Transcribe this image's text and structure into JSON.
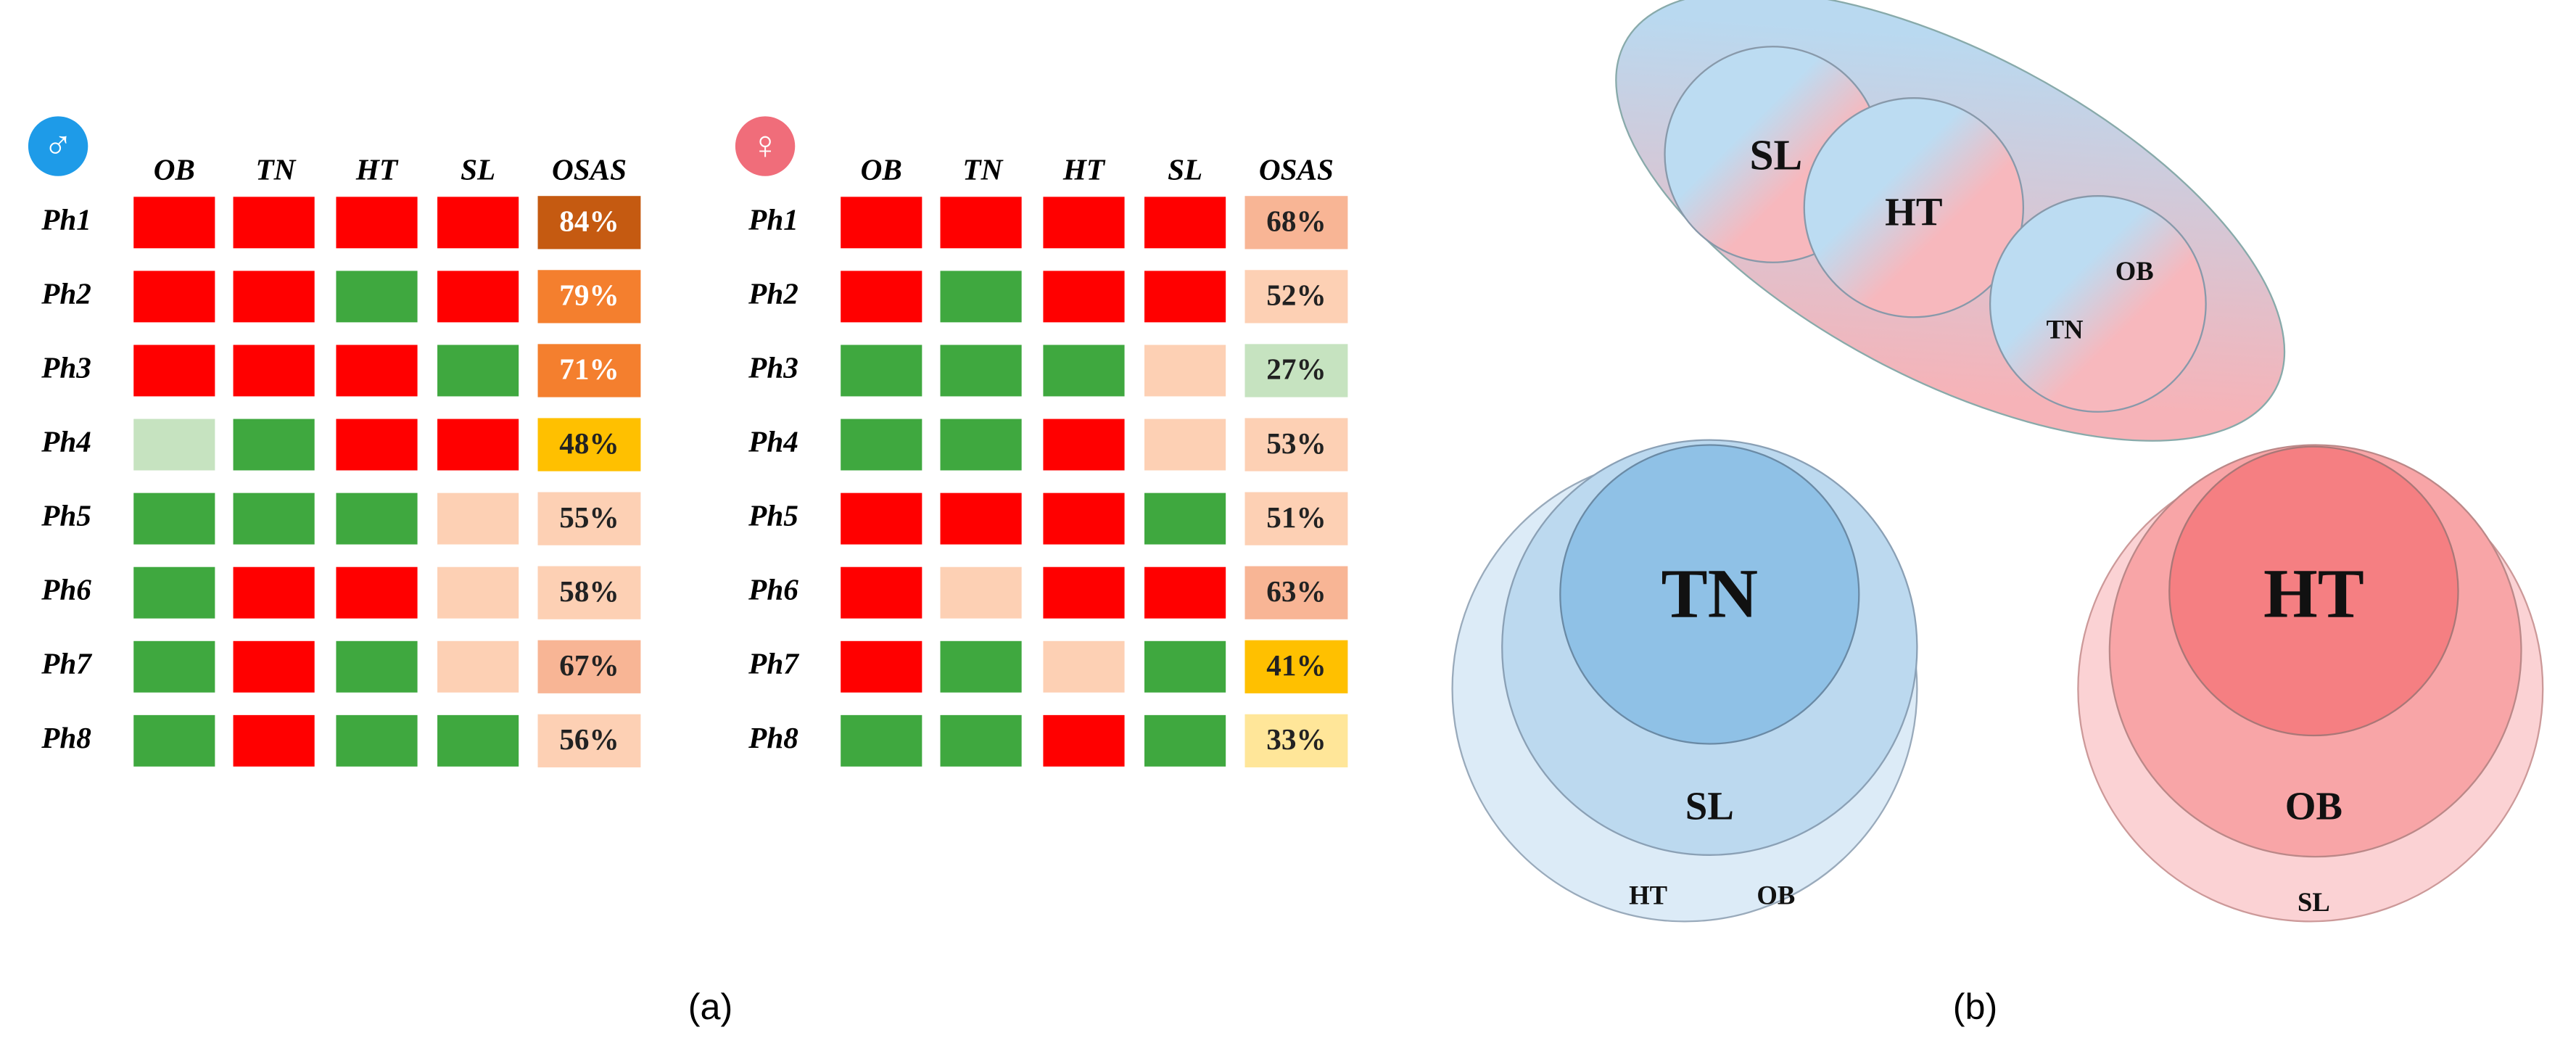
{
  "tables": [
    {
      "symbol": "♂",
      "symbol_color": "#1e9be8",
      "columns": [
        "OB",
        "TN",
        "HT",
        "SL",
        "OSAS"
      ],
      "rows": [
        {
          "label": "Ph1",
          "cells": [
            "#ff0000",
            "#ff0000",
            "#ff0000",
            "#ff0000"
          ],
          "osas": "84%",
          "osas_color": "#c55a11",
          "text_color": "#ffffff"
        },
        {
          "label": "Ph2",
          "cells": [
            "#ff0000",
            "#ff0000",
            "#3fa83f",
            "#ff0000"
          ],
          "osas": "79%",
          "osas_color": "#f47f2e",
          "text_color": "#ffffff"
        },
        {
          "label": "Ph3",
          "cells": [
            "#ff0000",
            "#ff0000",
            "#ff0000",
            "#3fa83f"
          ],
          "osas": "71%",
          "osas_color": "#f47f2e",
          "text_color": "#ffffff"
        },
        {
          "label": "Ph4",
          "cells": [
            "#c6e3c0",
            "#3fa83f",
            "#ff0000",
            "#ff0000"
          ],
          "osas": "48%",
          "osas_color": "#ffc000",
          "text_color": "#222222"
        },
        {
          "label": "Ph5",
          "cells": [
            "#3fa83f",
            "#3fa83f",
            "#3fa83f",
            "#fdd0b4"
          ],
          "osas": "55%",
          "osas_color": "#fdd0b4",
          "text_color": "#222222"
        },
        {
          "label": "Ph6",
          "cells": [
            "#3fa83f",
            "#ff0000",
            "#ff0000",
            "#fdd0b4"
          ],
          "osas": "58%",
          "osas_color": "#fdd0b4",
          "text_color": "#222222"
        },
        {
          "label": "Ph7",
          "cells": [
            "#3fa83f",
            "#ff0000",
            "#3fa83f",
            "#fdd0b4"
          ],
          "osas": "67%",
          "osas_color": "#f8b595",
          "text_color": "#222222"
        },
        {
          "label": "Ph8",
          "cells": [
            "#3fa83f",
            "#ff0000",
            "#3fa83f",
            "#3fa83f"
          ],
          "osas": "56%",
          "osas_color": "#fdd0b4",
          "text_color": "#222222"
        }
      ]
    },
    {
      "symbol": "♀",
      "symbol_color": "#f06d7a",
      "columns": [
        "OB",
        "TN",
        "HT",
        "SL",
        "OSAS"
      ],
      "rows": [
        {
          "label": "Ph1",
          "cells": [
            "#ff0000",
            "#ff0000",
            "#ff0000",
            "#ff0000"
          ],
          "osas": "68%",
          "osas_color": "#f8b595",
          "text_color": "#222222"
        },
        {
          "label": "Ph2",
          "cells": [
            "#ff0000",
            "#3fa83f",
            "#ff0000",
            "#ff0000"
          ],
          "osas": "52%",
          "osas_color": "#fdd0b4",
          "text_color": "#222222"
        },
        {
          "label": "Ph3",
          "cells": [
            "#3fa83f",
            "#3fa83f",
            "#3fa83f",
            "#fdd0b4"
          ],
          "osas": "27%",
          "osas_color": "#c6e3c0",
          "text_color": "#222222"
        },
        {
          "label": "Ph4",
          "cells": [
            "#3fa83f",
            "#3fa83f",
            "#ff0000",
            "#fdd0b4"
          ],
          "osas": "53%",
          "osas_color": "#fdd0b4",
          "text_color": "#222222"
        },
        {
          "label": "Ph5",
          "cells": [
            "#ff0000",
            "#ff0000",
            "#ff0000",
            "#3fa83f"
          ],
          "osas": "51%",
          "osas_color": "#fdd0b4",
          "text_color": "#222222"
        },
        {
          "label": "Ph6",
          "cells": [
            "#ff0000",
            "#fdd0b4",
            "#ff0000",
            "#ff0000"
          ],
          "osas": "63%",
          "osas_color": "#f8b595",
          "text_color": "#222222"
        },
        {
          "label": "Ph7",
          "cells": [
            "#ff0000",
            "#3fa83f",
            "#fdd0b4",
            "#3fa83f"
          ],
          "osas": "41%",
          "osas_color": "#ffc000",
          "text_color": "#222222"
        },
        {
          "label": "Ph8",
          "cells": [
            "#3fa83f",
            "#3fa83f",
            "#ff0000",
            "#3fa83f"
          ],
          "osas": "33%",
          "osas_color": "#ffe699",
          "text_color": "#222222"
        }
      ]
    }
  ],
  "venn_top": {
    "labels": [
      "SL",
      "HT",
      "OB",
      "TN"
    ]
  },
  "venn_left": {
    "labels": [
      "TN",
      "SL",
      "HT",
      "OB"
    ]
  },
  "venn_right": {
    "labels": [
      "HT",
      "OB",
      "SL"
    ]
  },
  "captions": [
    "(a)",
    "(b)"
  ]
}
